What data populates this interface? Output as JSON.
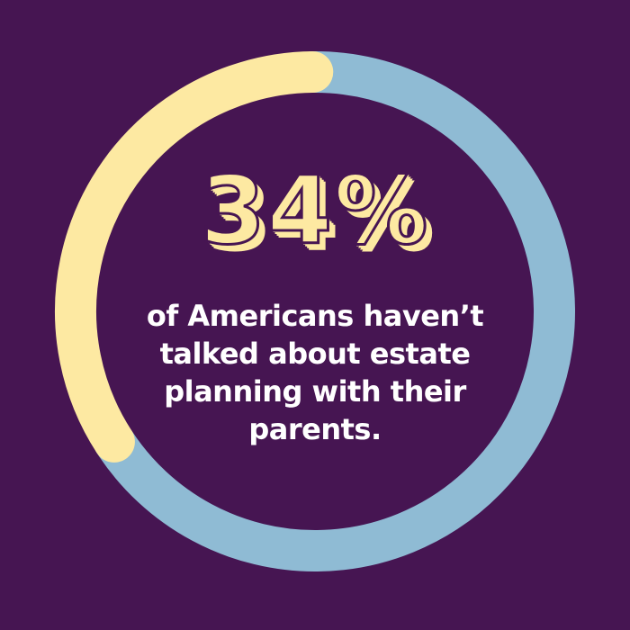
{
  "colors": {
    "background": "#461552",
    "highlight_arc": "#fde9a2",
    "remainder_arc": "#8fbbd4",
    "stat_text": "#fde9a2",
    "caption_text": "#ffffff"
  },
  "stat": {
    "value_text": "34%",
    "caption": "of Americans haven’t talked about estate planning with their parents."
  },
  "chart_data": {
    "type": "pie",
    "style": "donut",
    "slices": [
      {
        "value": 34,
        "color": "#fde9a2"
      },
      {
        "value": 66,
        "color": "#8fbbd4"
      }
    ],
    "center_label": "34%",
    "center_caption": "of Americans haven’t talked about estate planning with their parents."
  }
}
